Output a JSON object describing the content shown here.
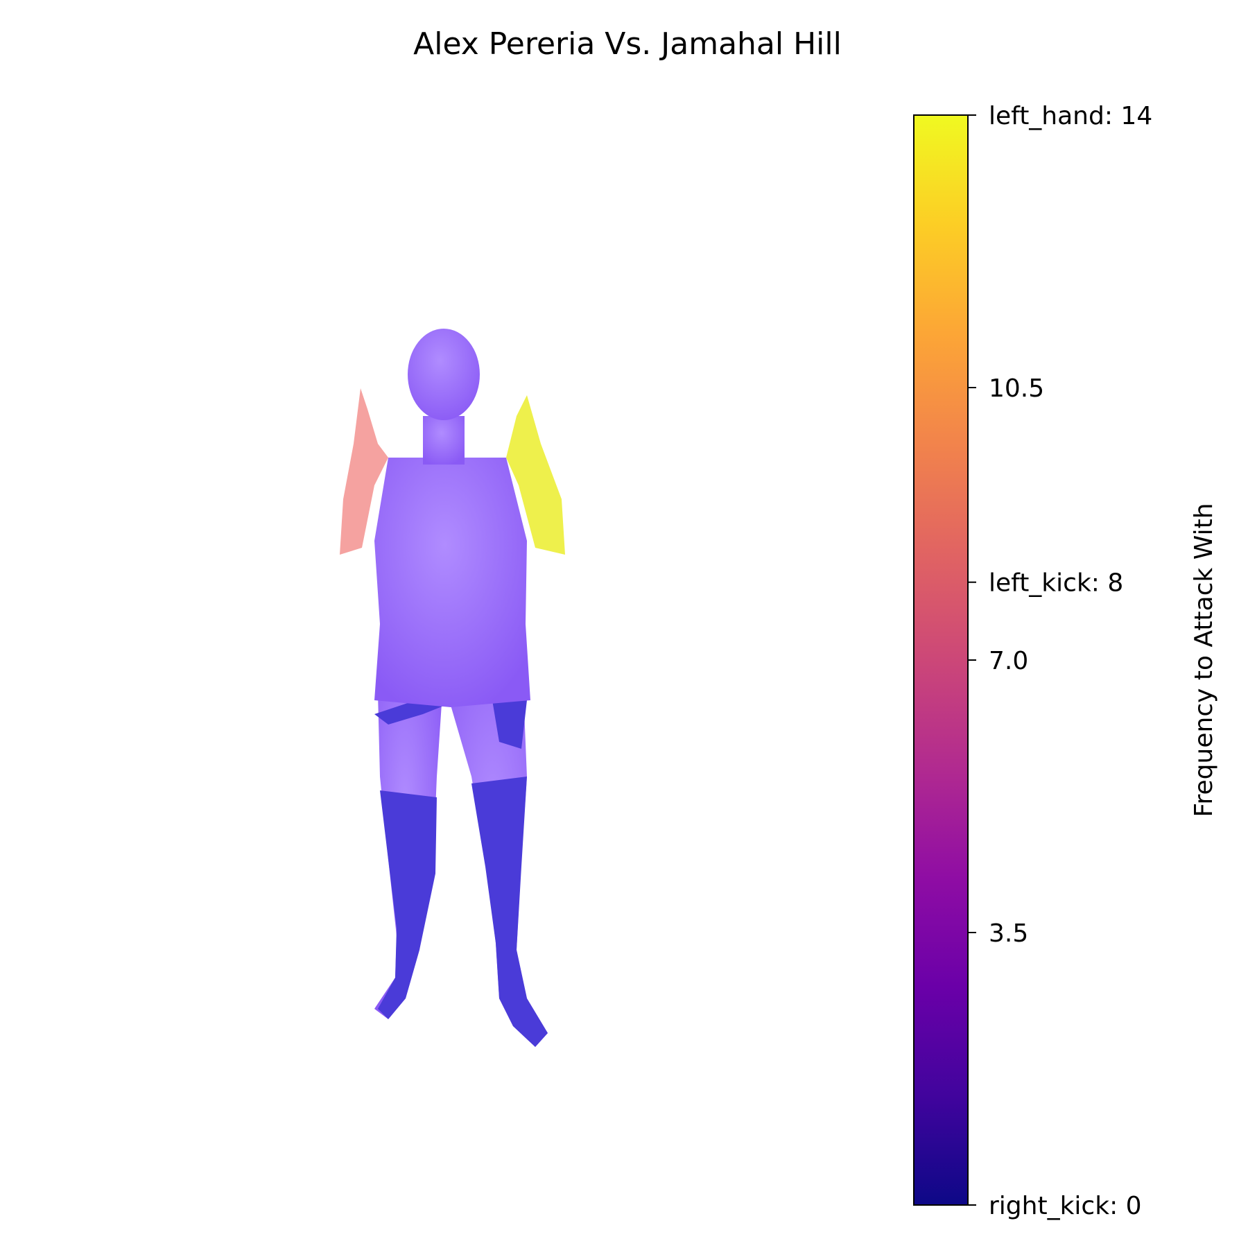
{
  "title": "Alex Pereria Vs. Jamahal Hill",
  "colors": {
    "body": "#9d6cfb",
    "body_dark": "#4a3bd8",
    "right_arm": "#f5a2a0",
    "left_arm": "#eef04c",
    "background": "#ffffff"
  },
  "chart_data": {
    "type": "heatmap",
    "colormap": "plasma",
    "title": "Alex Pereria Vs. Jamahal Hill",
    "colorbar": {
      "label": "Frequency to Attack With",
      "range": [
        0,
        14
      ],
      "ticks": [
        {
          "value": 0,
          "label": "right_kick: 0"
        },
        {
          "value": 3.5,
          "label": "3.5"
        },
        {
          "value": 7.0,
          "label": "7.0"
        },
        {
          "value": 8,
          "label": "left_kick: 8"
        },
        {
          "value": 10.5,
          "label": "10.5"
        },
        {
          "value": 14,
          "label": "left_hand: 14"
        }
      ]
    },
    "regions": [
      {
        "name": "left_hand",
        "value": 14
      },
      {
        "name": "left_kick",
        "value": 8
      },
      {
        "name": "right_kick",
        "value": 0
      }
    ]
  }
}
